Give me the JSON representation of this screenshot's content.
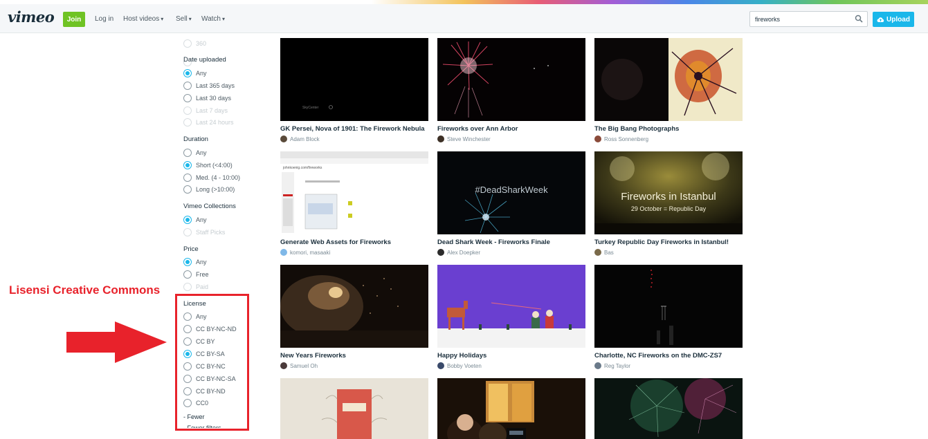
{
  "header": {
    "logo": "vimeo",
    "join_label": "Join",
    "login_label": "Log in",
    "host_videos_label": "Host videos",
    "sell_label": "Sell",
    "watch_label": "Watch",
    "search_value": "fireworks",
    "upload_label": "Upload"
  },
  "filters": {
    "top_partial": "360",
    "date_uploaded": {
      "heading": "Date uploaded",
      "options": [
        "Any",
        "Last 365 days",
        "Last 30 days",
        "Last 7 days",
        "Last 24 hours"
      ]
    },
    "duration": {
      "heading": "Duration",
      "options": [
        "Any",
        "Short (<4:00)",
        "Med. (4 - 10:00)",
        "Long (>10:00)"
      ]
    },
    "collections": {
      "heading": "Vimeo Collections",
      "options": [
        "Any",
        "Staff Picks"
      ]
    },
    "price": {
      "heading": "Price",
      "options": [
        "Any",
        "Free",
        "Paid"
      ]
    },
    "license": {
      "heading": "License",
      "options": [
        "Any",
        "CC BY-NC-ND",
        "CC BY",
        "CC BY-SA",
        "CC BY-NC",
        "CC BY-NC-SA",
        "CC BY-ND",
        "CC0"
      ]
    },
    "fewer_label": "- Fewer",
    "fewer_filters_label": "- Fewer filters"
  },
  "annotation": {
    "text": "Lisensi Creative Commons",
    "color": "#e8222b"
  },
  "videos": [
    {
      "title": "GK Persei, Nova of 1901: The Firework Nebula",
      "author": "Adam Block"
    },
    {
      "title": "Fireworks over Ann Arbor",
      "author": "Steve Winchester"
    },
    {
      "title": "The Big Bang Photographs",
      "author": "Ross Sonnenberg"
    },
    {
      "title": "Generate Web Assets for Fireworks",
      "author": "komori, masaaki"
    },
    {
      "title": "Dead Shark Week - Fireworks Finale",
      "author": "Alex Doepker"
    },
    {
      "title": "Turkey Republic Day Fireworks in Istanbul!",
      "author": "Bas"
    },
    {
      "title": "New Years Fireworks",
      "author": "Samuel Oh"
    },
    {
      "title": "Happy Holidays",
      "author": "Bobby Voeten"
    },
    {
      "title": "Charlotte, NC Fireworks on the DMC-ZS7",
      "author": "Reg Taylor"
    }
  ],
  "thumb_text": {
    "skycenter": "SkyCenter",
    "url": "johnkoenig.com/fireworks",
    "shark": "#DeadSharkWeek",
    "istanbul_title": "Fireworks in Istanbul",
    "istanbul_sub": "29 October = Republic Day"
  },
  "colors": {
    "accent": "#1ab7ea",
    "join": "#6fc324",
    "annotation": "#e8222b"
  }
}
